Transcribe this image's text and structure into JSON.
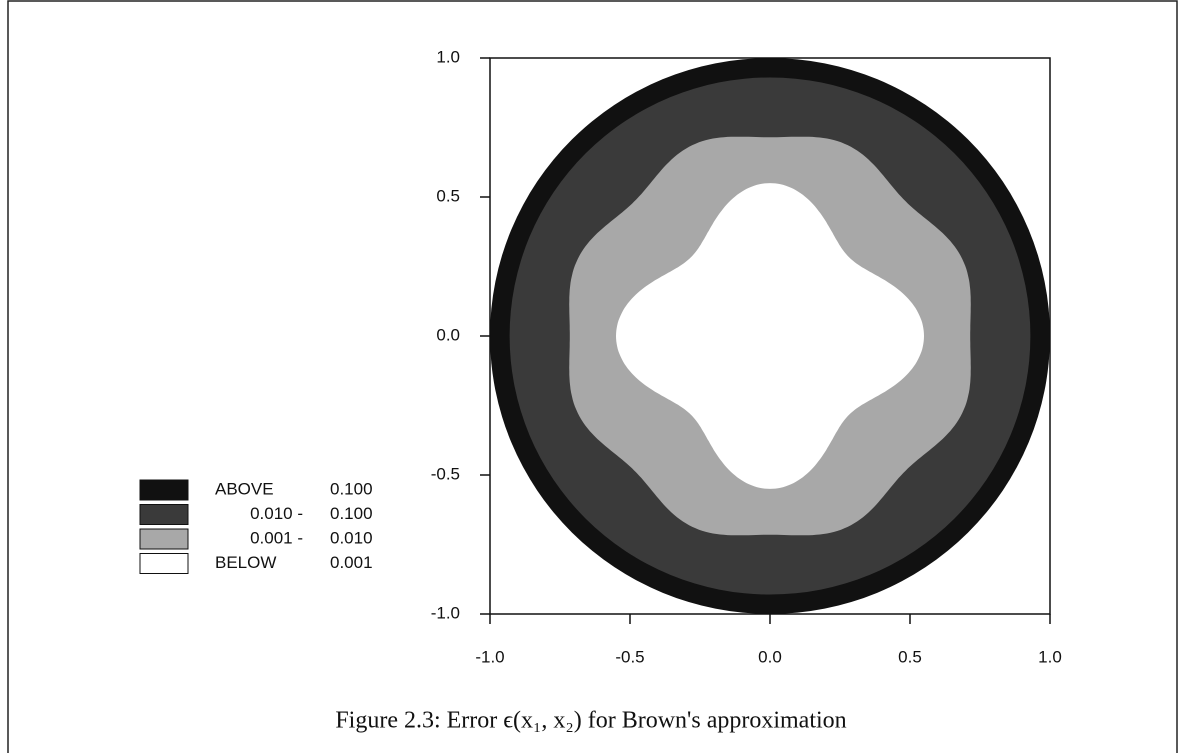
{
  "chart_data": {
    "type": "contour",
    "caption": "Figure 2.3: Error ϵ(x₁, x₂) for Brown's approximation",
    "xlim": [
      -1.0,
      1.0
    ],
    "ylim": [
      -1.0,
      1.0
    ],
    "xticks": [
      {
        "value": -1.0,
        "label": "-1.0"
      },
      {
        "value": -0.5,
        "label": "-0.5"
      },
      {
        "value": 0,
        "label": "0.0"
      },
      {
        "value": 0.5,
        "label": "0.5"
      },
      {
        "value": 1.0,
        "label": "1.0"
      }
    ],
    "yticks": [
      {
        "value": -1.0,
        "label": "-1.0"
      },
      {
        "value": -0.5,
        "label": "-0.5"
      },
      {
        "value": 0,
        "label": "0.0"
      },
      {
        "value": 0.5,
        "label": "0.5"
      },
      {
        "value": 1.0,
        "label": "1.0"
      }
    ],
    "legend": [
      {
        "from": "ABOVE",
        "to": "0.100",
        "color": "#111111"
      },
      {
        "from": "0.010 -",
        "to": "0.100",
        "color": "#3a3a3a"
      },
      {
        "from": "0.001 -",
        "to": "0.010",
        "color": "#a8a8a8"
      },
      {
        "from": "BELOW",
        "to": "0.001",
        "color": "#ffffff"
      }
    ]
  }
}
